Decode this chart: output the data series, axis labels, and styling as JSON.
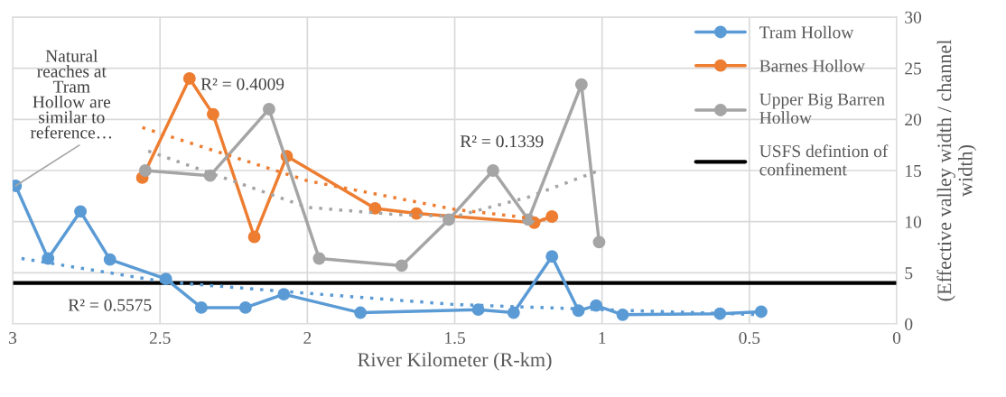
{
  "chart_data": {
    "type": "line",
    "xlabel": "River Kilometer (R-km)",
    "ylabel": "(Effective valley width / channel\nwidth)",
    "xlim": [
      3,
      0
    ],
    "xticks": [
      3,
      2.5,
      2,
      1.5,
      1,
      0.5,
      0
    ],
    "ylim": [
      0,
      30
    ],
    "yticks": [
      0,
      5,
      10,
      15,
      20,
      25,
      30
    ],
    "grid": true,
    "legend": "top right",
    "marker": "circle",
    "line_style": "solid",
    "series": [
      {
        "name": "Tram Hollow",
        "color": "#5b9bd5",
        "x": [
          2.99,
          2.88,
          2.77,
          2.67,
          2.48,
          2.36,
          2.21,
          2.08,
          1.82,
          1.42,
          1.3,
          1.17,
          1.08,
          1.02,
          0.93,
          0.6,
          0.46
        ],
        "values": [
          13.5,
          6.4,
          11.0,
          6.3,
          4.4,
          1.6,
          1.6,
          2.9,
          1.1,
          1.4,
          1.1,
          6.6,
          1.3,
          1.8,
          0.9,
          1.0,
          1.2
        ]
      },
      {
        "name": "Barnes Hollow",
        "color": "#ed7d31",
        "x": [
          2.56,
          2.4,
          2.32,
          2.18,
          2.07,
          1.77,
          1.63,
          1.23,
          1.17
        ],
        "values": [
          14.3,
          24.0,
          20.5,
          8.5,
          16.4,
          11.3,
          10.8,
          9.9,
          10.5
        ]
      },
      {
        "name": "Upper Big Barren\nHollow",
        "color": "#a5a5a5",
        "x": [
          2.55,
          2.33,
          2.13,
          1.96,
          1.68,
          1.52,
          1.37,
          1.25,
          1.07,
          1.01
        ],
        "values": [
          15.0,
          14.5,
          21.0,
          6.4,
          5.7,
          10.2,
          15.0,
          10.2,
          23.4,
          8.0
        ]
      },
      {
        "color": "#5b9bd5",
        "marker": "none",
        "line_style": "dotted",
        "x": [
          2.97,
          2.48,
          2.0,
          1.5,
          1.0,
          0.46
        ],
        "values": [
          6.4,
          4.1,
          3.0,
          1.9,
          1.4,
          0.9
        ]
      },
      {
        "color": "#ed7d31",
        "marker": "none",
        "line_style": "dotted",
        "x": [
          2.56,
          2.0,
          1.5,
          1.17
        ],
        "values": [
          19.2,
          14.0,
          11.2,
          10.1
        ]
      },
      {
        "color": "#a5a5a5",
        "marker": "none",
        "line_style": "dotted",
        "x": [
          2.54,
          2.0,
          1.7,
          1.5,
          1.25,
          1.01
        ],
        "values": [
          16.9,
          11.4,
          10.7,
          10.5,
          12.4,
          15.0
        ]
      }
    ],
    "ref_lines": [
      {
        "axis": "y",
        "value": 4,
        "label": "USFS defintion of\nconfinement",
        "color": "#000000",
        "line_style": "solid"
      }
    ],
    "annotations": [
      {
        "text": "Natural\nreaches at\nTram\nHollow are\nsimilar to\nreference…",
        "x": 2.99,
        "y": 13.5
      },
      "R² = 0.5575",
      "R² = 0.4009",
      "R² = 0.1339"
    ]
  }
}
